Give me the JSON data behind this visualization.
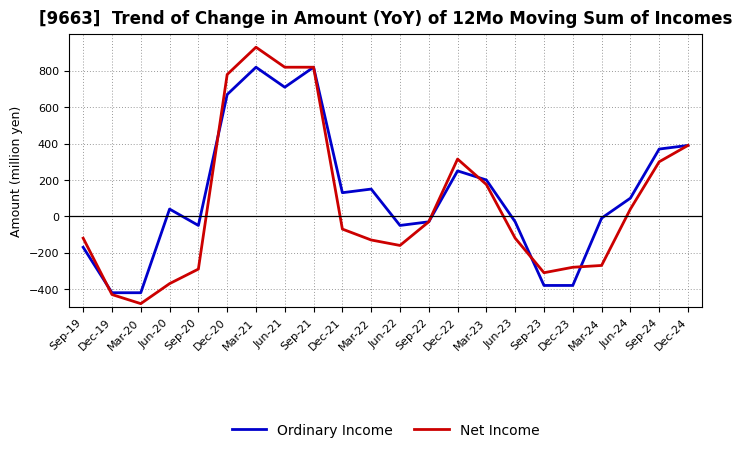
{
  "title": "[9663]  Trend of Change in Amount (YoY) of 12Mo Moving Sum of Incomes",
  "ylabel": "Amount (million yen)",
  "x_labels": [
    "Sep-19",
    "Dec-19",
    "Mar-20",
    "Jun-20",
    "Sep-20",
    "Dec-20",
    "Mar-21",
    "Jun-21",
    "Sep-21",
    "Dec-21",
    "Mar-22",
    "Jun-22",
    "Sep-22",
    "Dec-22",
    "Mar-23",
    "Jun-23",
    "Sep-23",
    "Dec-23",
    "Mar-24",
    "Jun-24",
    "Sep-24",
    "Dec-24"
  ],
  "ordinary_income": [
    -170,
    -420,
    -420,
    40,
    -50,
    670,
    820,
    710,
    820,
    130,
    150,
    -50,
    -30,
    250,
    200,
    -30,
    -380,
    -380,
    -10,
    100,
    370,
    390
  ],
  "net_income": [
    -120,
    -430,
    -480,
    -370,
    -290,
    780,
    930,
    820,
    820,
    -70,
    -130,
    -160,
    -30,
    315,
    175,
    -120,
    -310,
    -280,
    -270,
    40,
    300,
    390
  ],
  "ordinary_color": "#0000cc",
  "net_color": "#cc0000",
  "background_color": "#ffffff",
  "ylim": [
    -500,
    1000
  ],
  "yticks": [
    -400,
    -200,
    0,
    200,
    400,
    600,
    800
  ],
  "legend_labels": [
    "Ordinary Income",
    "Net Income"
  ],
  "line_width": 2.0,
  "title_fontsize": 12,
  "axis_fontsize": 9,
  "tick_fontsize": 8,
  "grid_color": "#999999",
  "legend_fontsize": 10
}
